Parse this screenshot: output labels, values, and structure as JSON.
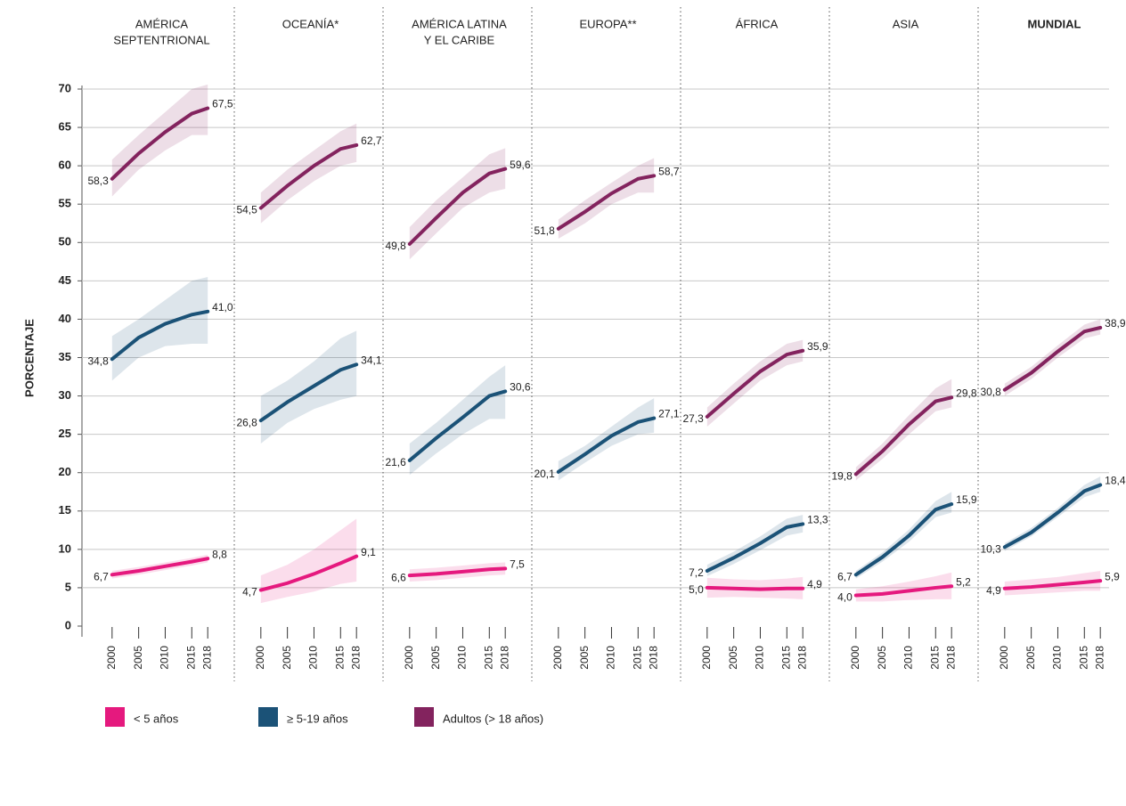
{
  "chart_data": {
    "type": "line",
    "ylabel": "PORCENTAJE",
    "ylim": [
      0,
      70
    ],
    "yticks": [
      0,
      5,
      10,
      15,
      20,
      25,
      30,
      35,
      40,
      45,
      50,
      55,
      60,
      65,
      70
    ],
    "x": [
      2000,
      2005,
      2010,
      2015,
      2018
    ],
    "xlim": [
      1995,
      2023
    ],
    "xticks": [
      2000,
      2005,
      2010,
      2015,
      2018
    ],
    "series": [
      {
        "name": "< 5 años",
        "color": "#e5197e"
      },
      {
        "name": "≥ 5-19 años",
        "color": "#1b5277"
      },
      {
        "name": "Adultos (> 18 años)",
        "color": "#83235e"
      }
    ],
    "panels": [
      {
        "title": [
          "AMÉRICA",
          "SEPTENTRIONAL"
        ],
        "series": [
          {
            "values": [
              6.7,
              7.2,
              7.8,
              8.4,
              8.8
            ],
            "lower": [
              6.2,
              6.7,
              7.3,
              7.9,
              8.3
            ],
            "upper": [
              7.2,
              7.7,
              8.3,
              8.9,
              9.3
            ],
            "value_labels": [
              "6,7",
              null,
              null,
              null,
              "8,8"
            ]
          },
          {
            "values": [
              34.8,
              37.6,
              39.4,
              40.6,
              41.0
            ],
            "lower": [
              32,
              35,
              36.5,
              36.8,
              36.8
            ],
            "upper": [
              37.8,
              40,
              42.5,
              45,
              45.5
            ],
            "value_labels": [
              "34,8",
              null,
              null,
              null,
              "41,0"
            ]
          },
          {
            "values": [
              58.3,
              61.6,
              64.4,
              66.8,
              67.5
            ],
            "lower": [
              56,
              59.5,
              62,
              64,
              64
            ],
            "upper": [
              60.8,
              64,
              67,
              70,
              70.6
            ],
            "value_labels": [
              "58,3",
              null,
              null,
              null,
              "67,5"
            ]
          }
        ]
      },
      {
        "title": [
          "OCEANÍA*"
        ],
        "series": [
          {
            "values": [
              4.7,
              5.6,
              6.8,
              8.2,
              9.1
            ],
            "lower": [
              3,
              3.8,
              4.5,
              5.5,
              5.8
            ],
            "upper": [
              6.6,
              8,
              10,
              12.5,
              14
            ],
            "value_labels": [
              "4,7",
              null,
              null,
              null,
              "9,1"
            ]
          },
          {
            "values": [
              26.8,
              29.2,
              31.3,
              33.4,
              34.1
            ],
            "lower": [
              23.8,
              26.5,
              28.3,
              29.5,
              30
            ],
            "upper": [
              30,
              32,
              34.5,
              37.5,
              38.5
            ],
            "value_labels": [
              "26,8",
              null,
              null,
              null,
              "34,1"
            ]
          },
          {
            "values": [
              54.5,
              57.4,
              60,
              62.2,
              62.7
            ],
            "lower": [
              52.5,
              55.5,
              58,
              60,
              60.5
            ],
            "upper": [
              56.5,
              59.5,
              62,
              64.5,
              65.5
            ],
            "value_labels": [
              "54,5",
              null,
              null,
              null,
              "62,7"
            ]
          }
        ]
      },
      {
        "title": [
          "AMÉRICA LATINA",
          "Y EL CARIBE"
        ],
        "series": [
          {
            "values": [
              6.6,
              6.8,
              7.1,
              7.4,
              7.5
            ],
            "lower": [
              5.8,
              6,
              6.3,
              6.6,
              6.7
            ],
            "upper": [
              7.4,
              7.6,
              7.9,
              8.2,
              8.3
            ],
            "value_labels": [
              "6,6",
              null,
              null,
              null,
              "7,5"
            ]
          },
          {
            "values": [
              21.6,
              24.5,
              27.2,
              30,
              30.6
            ],
            "lower": [
              19.7,
              22.5,
              25,
              27,
              27
            ],
            "upper": [
              23.8,
              26.5,
              29.5,
              32.5,
              34
            ],
            "value_labels": [
              "21,6",
              null,
              null,
              null,
              "30,6"
            ]
          },
          {
            "values": [
              49.8,
              53.2,
              56.5,
              59,
              59.6
            ],
            "lower": [
              47.8,
              51.2,
              54.5,
              56.5,
              57
            ],
            "upper": [
              52,
              55.5,
              58.5,
              61.5,
              62.3
            ],
            "value_labels": [
              "49,8",
              null,
              null,
              null,
              "59,6"
            ]
          }
        ]
      },
      {
        "title": [
          "EUROPA**"
        ],
        "series": [
          null,
          {
            "values": [
              20.1,
              22.4,
              24.8,
              26.6,
              27.1
            ],
            "lower": [
              19,
              21.3,
              23.5,
              25,
              25.2
            ],
            "upper": [
              21.5,
              23.5,
              26,
              28.5,
              29.7
            ],
            "value_labels": [
              "20,1",
              null,
              null,
              null,
              "27,1"
            ]
          },
          {
            "values": [
              51.8,
              54,
              56.4,
              58.3,
              58.7
            ],
            "lower": [
              50.5,
              52.5,
              55,
              56.5,
              56.5
            ],
            "upper": [
              53,
              55.5,
              57.8,
              60,
              61
            ],
            "value_labels": [
              "51,8",
              null,
              null,
              null,
              "58,7"
            ]
          }
        ]
      },
      {
        "title": [
          "ÁFRICA"
        ],
        "series": [
          {
            "values": [
              5.0,
              4.9,
              4.8,
              4.9,
              4.9
            ],
            "lower": [
              3.7,
              3.8,
              3.7,
              3.6,
              3.5
            ],
            "upper": [
              6.3,
              6.1,
              6,
              6.2,
              6.4
            ],
            "value_labels": [
              "5,0",
              null,
              null,
              null,
              "4,9"
            ]
          },
          {
            "values": [
              7.2,
              8.9,
              10.8,
              12.9,
              13.3
            ],
            "lower": [
              6.5,
              8.1,
              9.9,
              11.8,
              12.2
            ],
            "upper": [
              8,
              9.7,
              11.7,
              14,
              14.5
            ],
            "value_labels": [
              "7,2",
              null,
              null,
              null,
              "13,3"
            ]
          },
          {
            "values": [
              27.3,
              30.3,
              33.2,
              35.4,
              35.9
            ],
            "lower": [
              26,
              29,
              32,
              34,
              34.5
            ],
            "upper": [
              28.5,
              31.6,
              34.5,
              36.8,
              37.3
            ],
            "value_labels": [
              "27,3",
              null,
              null,
              null,
              "35,9"
            ]
          }
        ]
      },
      {
        "title": [
          "ASIA"
        ],
        "series": [
          {
            "values": [
              4.0,
              4.2,
              4.6,
              5.0,
              5.2
            ],
            "lower": [
              3.2,
              3.2,
              3.4,
              3.5,
              3.5
            ],
            "upper": [
              4.8,
              5.2,
              5.8,
              6.5,
              7
            ],
            "value_labels": [
              "4,0",
              null,
              null,
              null,
              "5,2"
            ]
          },
          {
            "values": [
              6.7,
              9,
              11.8,
              15.2,
              15.9
            ],
            "lower": [
              6.2,
              8.4,
              11,
              14.2,
              14.8
            ],
            "upper": [
              7.2,
              9.6,
              12.6,
              16.3,
              17.5
            ],
            "value_labels": [
              "6,7",
              null,
              null,
              null,
              "15,9"
            ]
          },
          {
            "values": [
              19.8,
              22.8,
              26.3,
              29.3,
              29.8
            ],
            "lower": [
              19,
              21.8,
              25,
              28,
              28.5
            ],
            "upper": [
              20.7,
              23.8,
              27.5,
              31,
              32.2
            ],
            "value_labels": [
              "19,8",
              null,
              null,
              null,
              "29,8"
            ]
          }
        ]
      },
      {
        "title": [
          "MUNDIAL"
        ],
        "bold": true,
        "series": [
          {
            "values": [
              4.9,
              5.1,
              5.4,
              5.7,
              5.9
            ],
            "lower": [
              4,
              4.2,
              4.4,
              4.6,
              4.6
            ],
            "upper": [
              5.8,
              6.1,
              6.4,
              6.9,
              7.2
            ],
            "value_labels": [
              "4,9",
              null,
              null,
              null,
              "5,9"
            ]
          },
          {
            "values": [
              10.3,
              12.2,
              14.8,
              17.6,
              18.4
            ],
            "lower": [
              9.8,
              11.7,
              14.2,
              16.8,
              17.5
            ],
            "upper": [
              10.8,
              12.8,
              15.4,
              18.4,
              19.5
            ],
            "value_labels": [
              "10,3",
              null,
              null,
              null,
              "18,4"
            ]
          },
          {
            "values": [
              30.8,
              33,
              35.8,
              38.4,
              38.9
            ],
            "lower": [
              30,
              32.2,
              35,
              37.5,
              38
            ],
            "upper": [
              31.6,
              33.8,
              36.6,
              39.3,
              40
            ],
            "value_labels": [
              "30,8",
              null,
              null,
              null,
              "38,9"
            ]
          }
        ]
      }
    ]
  }
}
